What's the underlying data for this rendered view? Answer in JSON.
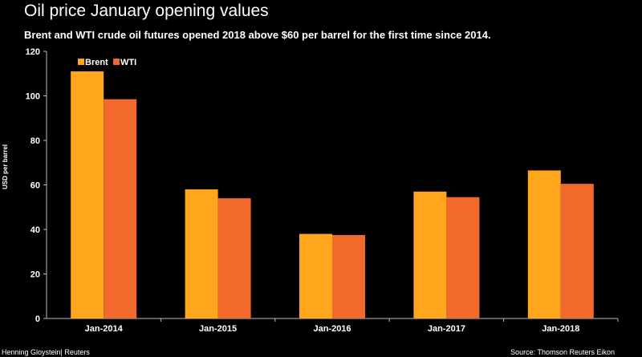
{
  "chart_data": {
    "type": "bar",
    "title": "Oil price January opening values",
    "subtitle": "Brent and WTI crude oil futures opened 2018 above $60 per barrel for the first time since 2014.",
    "ylabel": "USD per barrel",
    "xlabel": "",
    "categories": [
      "Jan-2014",
      "Jan-2015",
      "Jan-2016",
      "Jan-2017",
      "Jan-2018"
    ],
    "series": [
      {
        "name": "Brent",
        "values": [
          111,
          58,
          38,
          57,
          66.5
        ],
        "color": "#FFA61C"
      },
      {
        "name": "WTI",
        "values": [
          98.5,
          54,
          37.5,
          54.5,
          60.5
        ],
        "color": "#F26A2B"
      }
    ],
    "ylim": [
      0,
      120
    ],
    "yticks": [
      0,
      20,
      40,
      60,
      80,
      100,
      120
    ],
    "grid": false,
    "legend": "top-left"
  },
  "footer": {
    "credit": "Henning Gloystein| Reuters",
    "source": "Source: Thomson Reuters Eikon"
  }
}
